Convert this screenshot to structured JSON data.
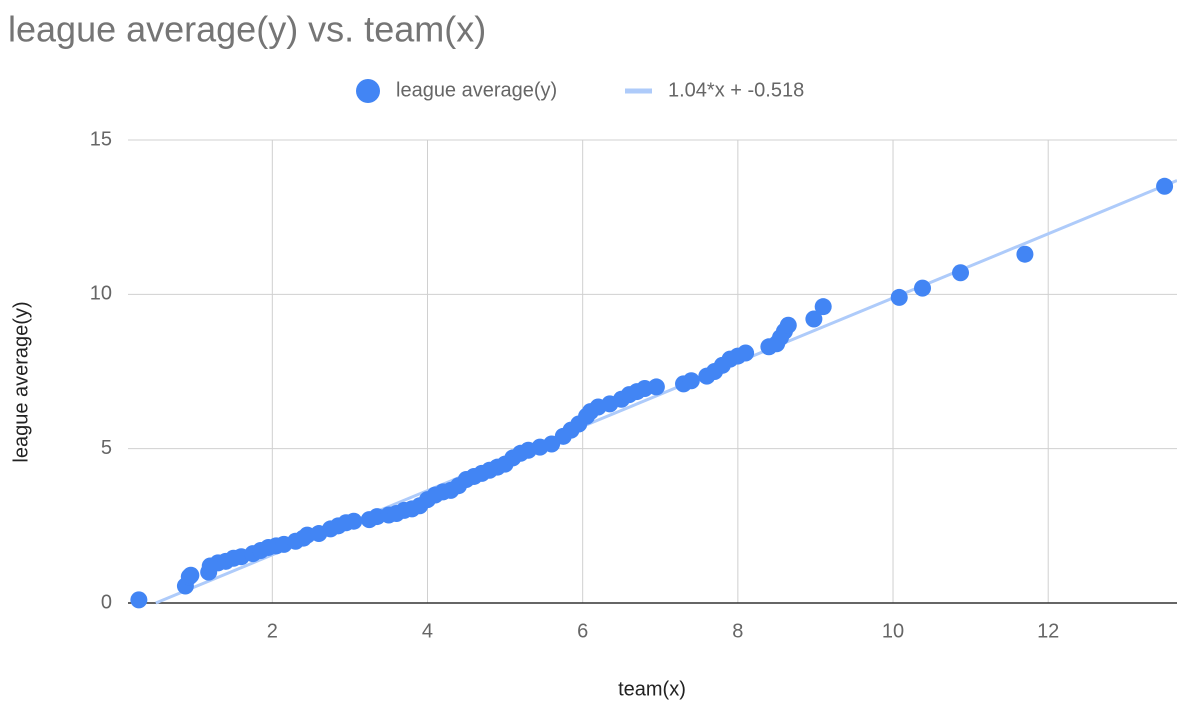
{
  "chart_data": {
    "type": "scatter",
    "title": "league average(y) vs. team(x)",
    "x_label": "team(x)",
    "y_label": "league average(y)",
    "x": [
      0.28,
      0.88,
      0.93,
      0.95,
      1.18,
      1.2,
      1.3,
      1.4,
      1.5,
      1.6,
      1.75,
      1.85,
      1.95,
      2.05,
      2.15,
      2.3,
      2.4,
      2.45,
      2.6,
      2.75,
      2.85,
      2.95,
      3.05,
      3.25,
      3.35,
      3.5,
      3.6,
      3.7,
      3.8,
      3.9,
      4.0,
      4.1,
      4.2,
      4.3,
      4.4,
      4.5,
      4.6,
      4.7,
      4.8,
      4.9,
      5.0,
      5.1,
      5.2,
      5.3,
      5.45,
      5.6,
      5.75,
      5.85,
      5.95,
      6.05,
      6.1,
      6.2,
      6.35,
      6.5,
      6.6,
      6.7,
      6.8,
      6.95,
      7.3,
      7.4,
      7.6,
      7.7,
      7.8,
      7.9,
      8.0,
      8.1,
      8.4,
      8.5,
      8.55,
      8.6,
      8.65,
      8.98,
      9.1,
      10.08,
      10.38,
      10.87,
      11.7,
      13.5
    ],
    "series": [
      {
        "name": "league average(y)",
        "color": "#4285f4",
        "values": [
          0.1,
          0.55,
          0.85,
          0.9,
          1.0,
          1.2,
          1.3,
          1.35,
          1.45,
          1.5,
          1.6,
          1.7,
          1.8,
          1.85,
          1.9,
          2.0,
          2.1,
          2.2,
          2.25,
          2.4,
          2.5,
          2.6,
          2.65,
          2.7,
          2.8,
          2.85,
          2.9,
          3.0,
          3.05,
          3.15,
          3.35,
          3.5,
          3.6,
          3.65,
          3.8,
          4.0,
          4.1,
          4.2,
          4.3,
          4.4,
          4.5,
          4.7,
          4.85,
          4.95,
          5.05,
          5.15,
          5.4,
          5.6,
          5.8,
          6.05,
          6.2,
          6.35,
          6.45,
          6.6,
          6.75,
          6.85,
          6.95,
          7.0,
          7.1,
          7.2,
          7.35,
          7.5,
          7.7,
          7.9,
          8.0,
          8.1,
          8.3,
          8.4,
          8.6,
          8.8,
          9.0,
          9.2,
          9.6,
          9.9,
          10.2,
          10.7,
          11.3,
          13.5
        ]
      }
    ],
    "trendline": {
      "label": "1.04*x + -0.518",
      "slope": 1.04,
      "intercept": -0.518,
      "color": "#aecbfa"
    },
    "xlim": [
      0.14,
      13.66
    ],
    "xticks": [
      2,
      4,
      6,
      8,
      10,
      12
    ],
    "ylim": [
      0,
      15
    ],
    "yticks": [
      0,
      5,
      10,
      15
    ],
    "grid": true
  }
}
